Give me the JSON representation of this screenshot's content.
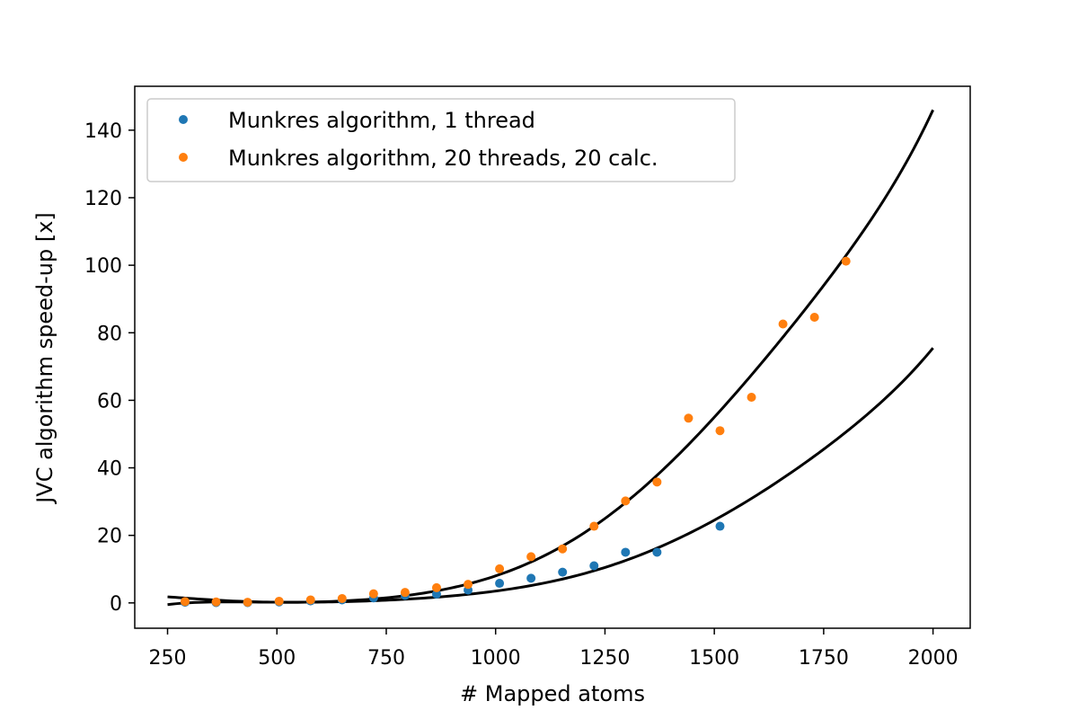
{
  "chart_data": {
    "type": "scatter",
    "title": "",
    "xlabel": "# Mapped atoms",
    "ylabel": "JVC algorithm speed-up [x]",
    "xlim": [
      175,
      2085
    ],
    "ylim": [
      -7.5,
      153
    ],
    "xticks": [
      250,
      500,
      750,
      1000,
      1250,
      1500,
      1750,
      2000
    ],
    "yticks": [
      0,
      20,
      40,
      60,
      80,
      100,
      120,
      140
    ],
    "grid": false,
    "legend_position": "upper-left",
    "series": [
      {
        "name": "Munkres algorithm, 1 thread",
        "color": "#1f77b4",
        "x": [
          290,
          361,
          433,
          505,
          577,
          649,
          721,
          793,
          865,
          937,
          1009,
          1081,
          1153,
          1225,
          1297,
          1369,
          1513
        ],
        "y": [
          0.2,
          0.1,
          0.1,
          0.3,
          0.6,
          0.9,
          1.5,
          2.2,
          2.6,
          3.8,
          5.8,
          7.3,
          9.1,
          11.0,
          15.0,
          15.0,
          22.7
        ]
      },
      {
        "name": "Munkres algorithm, 20 threads, 20 calc.",
        "color": "#ff7f0e",
        "x": [
          290,
          361,
          433,
          505,
          577,
          649,
          721,
          793,
          865,
          937,
          1009,
          1081,
          1153,
          1225,
          1297,
          1369,
          1441,
          1513,
          1585,
          1657,
          1729,
          1801
        ],
        "y": [
          0.4,
          0.3,
          0.2,
          0.5,
          0.9,
          1.3,
          2.7,
          3.1,
          4.5,
          5.5,
          10.1,
          13.7,
          16.0,
          22.7,
          30.2,
          35.8,
          54.7,
          51.0,
          60.9,
          82.6,
          84.6,
          101.2
        ]
      }
    ],
    "fit_lines": [
      {
        "color": "#000000",
        "x": [
          250,
          500,
          750,
          1000,
          1250,
          1500,
          1750,
          2000
        ],
        "y": [
          -0.5,
          0.2,
          0.8,
          3.5,
          10.5,
          24.5,
          45.5,
          75.5
        ]
      },
      {
        "color": "#000000",
        "x": [
          250,
          500,
          750,
          1000,
          1250,
          1500,
          1750,
          2000
        ],
        "y": [
          1.8,
          0.2,
          1.5,
          8.0,
          25.0,
          55.0,
          94.0,
          146.0
        ]
      }
    ]
  }
}
